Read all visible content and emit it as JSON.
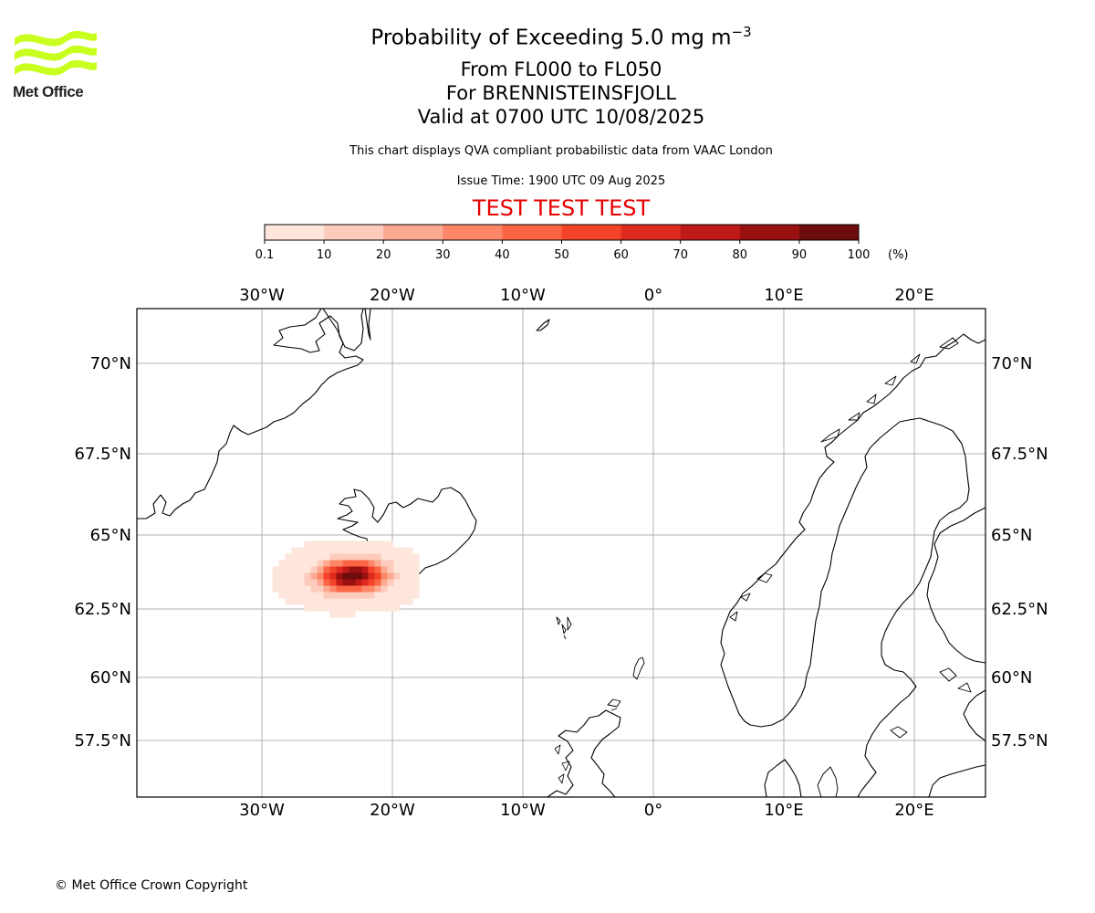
{
  "header": {
    "title_prefix": "Probability of Exceeding 5.0 mg m",
    "title_superscript": "−3",
    "level_range": "From FL000 to FL050",
    "volcano": "For BRENNISTEINSFJOLL",
    "valid_time": "Valid at 0700 UTC 10/08/2025",
    "disclaimer": "This chart displays QVA compliant probabilistic data from VAAC London",
    "issue_time": "Issue Time: 1900 UTC 09 Aug 2025",
    "test_banner": "TEST TEST TEST"
  },
  "logo": {
    "text": "Met Office",
    "color": "#c8ff1e"
  },
  "colorbar": {
    "unit": "(%)",
    "tick_labels": [
      "0.1",
      "10",
      "20",
      "30",
      "40",
      "50",
      "60",
      "70",
      "80",
      "90",
      "100"
    ],
    "colors": [
      "#fee6dd",
      "#fdcbbb",
      "#fca992",
      "#fc8668",
      "#fb6543",
      "#f34429",
      "#de2a1f",
      "#bf1a17",
      "#981010",
      "#6e0d0d"
    ]
  },
  "map": {
    "lon_labels": [
      "30°W",
      "20°W",
      "10°W",
      "0°",
      "10°E",
      "20°E"
    ],
    "lat_labels": [
      "70°N",
      "67.5°N",
      "65°N",
      "62.5°N",
      "60°N",
      "57.5°N"
    ],
    "gridline_color": "#b0b0b0",
    "plume_center_lon": -22.5,
    "plume_center_lat": 63.9
  },
  "footer": {
    "copyright": "© Met Office Crown Copyright"
  }
}
